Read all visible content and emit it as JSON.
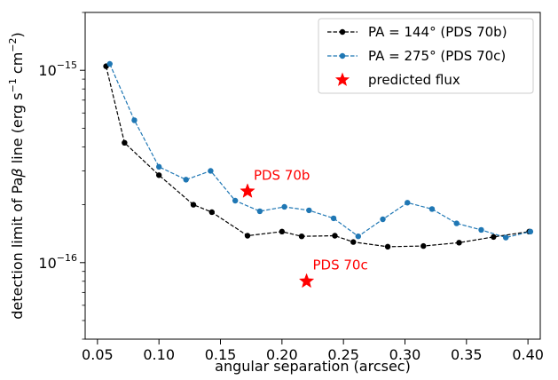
{
  "chart_data": {
    "type": "line",
    "xlabel": "angular separation (arcsec)",
    "ylabel_parts": [
      "detection limit of Pa",
      "β",
      " line (erg s",
      "−1",
      " cm",
      "−2",
      ")"
    ],
    "ylabel": "detection limit of Paβ line (erg s−1 cm−2)",
    "yscale": "log",
    "xlim": [
      0.04,
      0.41
    ],
    "ylim": [
      4e-17,
      2e-15
    ],
    "grid": false,
    "legend_position": "top-right",
    "xticks": [
      0.05,
      0.1,
      0.15,
      0.2,
      0.25,
      0.3,
      0.35,
      0.4
    ],
    "xtick_labels": [
      "0.05",
      "0.10",
      "0.15",
      "0.20",
      "0.25",
      "0.30",
      "0.35",
      "0.40"
    ],
    "yticks": [
      1e-16,
      1e-15
    ],
    "ytick_labels": [
      {
        "base": "10",
        "exp": "−16"
      },
      {
        "base": "10",
        "exp": "−15"
      }
    ],
    "series": [
      {
        "name": "PA = 144° (PDS 70b)",
        "color": "#000000",
        "linestyle": "dashed",
        "marker": "circle",
        "x": [
          0.057,
          0.072,
          0.1,
          0.128,
          0.143,
          0.172,
          0.2,
          0.216,
          0.243,
          0.258,
          0.286,
          0.315,
          0.344,
          0.372,
          0.401
        ],
        "y": [
          1.05e-15,
          4.2e-16,
          2.85e-16,
          2e-16,
          1.83e-16,
          1.38e-16,
          1.45e-16,
          1.37e-16,
          1.38e-16,
          1.28e-16,
          1.21e-16,
          1.22e-16,
          1.27e-16,
          1.36e-16,
          1.45e-16
        ]
      },
      {
        "name": "PA = 275° (PDS 70c)",
        "color": "#1f77b4",
        "linestyle": "dashed",
        "marker": "circle",
        "x": [
          0.06,
          0.08,
          0.1,
          0.122,
          0.142,
          0.162,
          0.182,
          0.202,
          0.222,
          0.242,
          0.262,
          0.282,
          0.302,
          0.322,
          0.342,
          0.362,
          0.382,
          0.402
        ],
        "y": [
          1.08e-15,
          5.5e-16,
          3.15e-16,
          2.7e-16,
          3e-16,
          2.1e-16,
          1.85e-16,
          1.95e-16,
          1.87e-16,
          1.7e-16,
          1.37e-16,
          1.68e-16,
          2.05e-16,
          1.9e-16,
          1.6e-16,
          1.48e-16,
          1.35e-16,
          1.45e-16
        ]
      },
      {
        "name": "predicted flux",
        "color": "#ff0000",
        "linestyle": "none",
        "marker": "star",
        "x": [
          0.172,
          0.22
        ],
        "y": [
          2.35e-16,
          8e-17
        ]
      }
    ],
    "annotations": [
      {
        "text": "PDS 70b",
        "x": 0.177,
        "y": 2.7e-16
      },
      {
        "text": "PDS 70c",
        "x": 0.225,
        "y": 9.2e-17
      }
    ]
  }
}
